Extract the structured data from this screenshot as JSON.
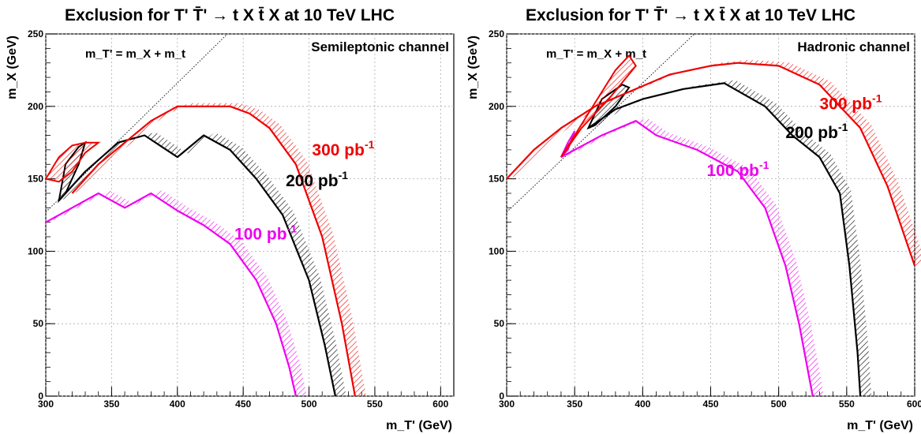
{
  "chart_data": [
    {
      "type": "line",
      "title": "Exclusion for T' T̄' → t X t̄ X at 10 TeV LHC",
      "channel": "Semileptonic channel",
      "relation_label": "m_T' = m_X + m_t",
      "xlabel": "m_T' (GeV)",
      "ylabel": "m_X (GeV)",
      "xlim": [
        300,
        610
      ],
      "ylim": [
        0,
        250
      ],
      "xticks": [
        300,
        350,
        400,
        450,
        500,
        550,
        600
      ],
      "yticks": [
        0,
        50,
        100,
        150,
        200,
        250
      ],
      "grid": true,
      "series": [
        {
          "name": "100 pb⁻¹",
          "color": "#ee00ee",
          "hatch_side": "right",
          "x": [
            300,
            320,
            340,
            360,
            380,
            400,
            420,
            440,
            460,
            475,
            485,
            490
          ],
          "y": [
            120,
            130,
            140,
            130,
            140,
            128,
            118,
            105,
            80,
            50,
            20,
            0
          ]
        },
        {
          "name": "200 pb⁻¹",
          "color": "#000000",
          "hatch_side": "right",
          "x": [
            310,
            330,
            355,
            375,
            400,
            420,
            440,
            460,
            480,
            500,
            512,
            520
          ],
          "y": [
            135,
            155,
            175,
            180,
            165,
            180,
            170,
            150,
            125,
            80,
            35,
            0
          ],
          "island_x": [
            310,
            315,
            325,
            330,
            325,
            315,
            310
          ],
          "island_y": [
            135,
            160,
            172,
            175,
            160,
            140,
            135
          ]
        },
        {
          "name": "300 pb⁻¹",
          "color": "#ee0000",
          "hatch_side": "right",
          "x": [
            320,
            340,
            360,
            380,
            400,
            420,
            440,
            455,
            470,
            490,
            510,
            525,
            535
          ],
          "y": [
            140,
            160,
            175,
            190,
            200,
            200,
            200,
            195,
            185,
            160,
            110,
            50,
            0
          ],
          "island_x": [
            300,
            310,
            320,
            330,
            340,
            330,
            320,
            310,
            300
          ],
          "island_y": [
            150,
            165,
            173,
            175,
            175,
            168,
            155,
            148,
            150
          ]
        }
      ],
      "series_labels": [
        {
          "text": "100 pb",
          "sup": "-1",
          "color": "#ee00ee",
          "x": 467,
          "y": 108
        },
        {
          "text": "200 pb",
          "sup": "-1",
          "color": "#000000",
          "x": 506,
          "y": 145
        },
        {
          "text": "300 pb",
          "sup": "-1",
          "color": "#ee0000",
          "x": 526,
          "y": 166
        }
      ]
    },
    {
      "type": "line",
      "title": "Exclusion for T' T̄' → t X t̄ X at 10 TeV LHC",
      "channel": "Hadronic channel",
      "relation_label": "m_T' = m_X + m_t",
      "xlabel": "m_T' (GeV)",
      "ylabel": "m_X (GeV)",
      "xlim": [
        300,
        600
      ],
      "ylim": [
        0,
        250
      ],
      "xticks": [
        300,
        350,
        400,
        450,
        500,
        550,
        600
      ],
      "yticks": [
        0,
        50,
        100,
        150,
        200,
        250
      ],
      "grid": true,
      "series": [
        {
          "name": "100 pb⁻¹",
          "color": "#ee00ee",
          "hatch_side": "right",
          "x": [
            340,
            370,
            395,
            410,
            440,
            470,
            490,
            505,
            515,
            522,
            525
          ],
          "y": [
            165,
            180,
            190,
            180,
            170,
            155,
            130,
            90,
            50,
            15,
            0
          ],
          "island_x": [
            340,
            345,
            350,
            345,
            340
          ],
          "island_y": [
            165,
            175,
            183,
            170,
            165
          ]
        },
        {
          "name": "200 pb⁻¹",
          "color": "#000000",
          "hatch_side": "right",
          "x": [
            360,
            380,
            400,
            430,
            460,
            490,
            510,
            530,
            545,
            552,
            558,
            560
          ],
          "y": [
            185,
            198,
            205,
            212,
            216,
            200,
            180,
            165,
            140,
            90,
            30,
            0
          ],
          "island_x": [
            360,
            370,
            385,
            390,
            380,
            365,
            360
          ],
          "island_y": [
            185,
            205,
            215,
            213,
            200,
            187,
            185
          ]
        },
        {
          "name": "300 pb⁻¹",
          "color": "#ee0000",
          "hatch_side": "right",
          "x": [
            300,
            320,
            340,
            365,
            390,
            420,
            450,
            470,
            500,
            530,
            560,
            580,
            600
          ],
          "y": [
            150,
            170,
            185,
            200,
            210,
            222,
            228,
            230,
            228,
            215,
            185,
            145,
            90
          ],
          "island_x": [
            340,
            360,
            380,
            390,
            395,
            375,
            355,
            340
          ],
          "island_y": [
            165,
            195,
            225,
            235,
            228,
            205,
            185,
            165
          ]
        }
      ],
      "series_labels": [
        {
          "text": "100 pb",
          "sup": "-1",
          "color": "#ee00ee",
          "x": 470,
          "y": 152
        },
        {
          "text": "200 pb",
          "sup": "-1",
          "color": "#000000",
          "x": 528,
          "y": 178
        },
        {
          "text": "300 pb",
          "sup": "-1",
          "color": "#ee0000",
          "x": 553,
          "y": 198
        }
      ]
    }
  ]
}
